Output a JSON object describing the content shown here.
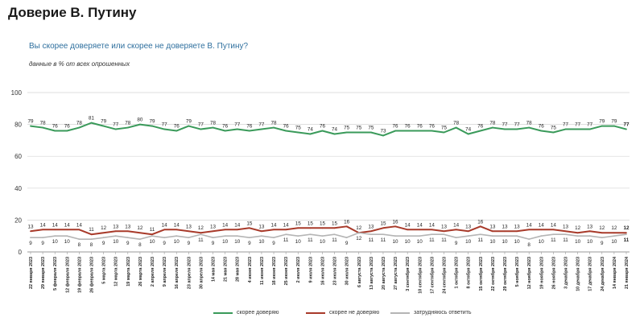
{
  "header": {
    "title": "Доверие В. Путину",
    "subtitle": "Вы скорее доверяете или скорее не доверяете В. Путину?",
    "note": "данные в % от всех опрошенных"
  },
  "colors": {
    "trust": "#3a9a5a",
    "distrust": "#a83a2a",
    "unsure": "#b5b5b5",
    "grid": "#d4d4d4"
  },
  "chart_data": {
    "type": "line",
    "ylim": [
      0,
      100
    ],
    "yticks": [
      0,
      20,
      40,
      60,
      80,
      100
    ],
    "grid": true,
    "legend_position": "bottom",
    "categories": [
      "22 января 2023",
      "29 января 2023",
      "5 февраля 2023",
      "12 февраля 2023",
      "19 февраля 2023",
      "26 февраля 2023",
      "5 марта 2023",
      "12 марта 2023",
      "19 марта 2023",
      "26 марта 2023",
      "2 апреля 2023",
      "9 апреля 2023",
      "16 апреля 2023",
      "23 апреля 2023",
      "30 апреля 2023",
      "14 мая 2023",
      "21 мая 2023",
      "28 мая 2023",
      "4 июня 2023",
      "11 июня 2023",
      "18 июня 2023",
      "25 июня 2023",
      "2 июля 2023",
      "9 июля 2023",
      "16 июля 2023",
      "23 июля 2023",
      "30 июля 2023",
      "6 августа 2023",
      "13 августа 2023",
      "20 августа 2023",
      "27 августа 2023",
      "3 сентября 2023",
      "10 сентября 2023",
      "17 сентября 2023",
      "24 сентября 2023",
      "1 октября 2023",
      "8 октября 2023",
      "15 октября 2023",
      "22 октября 2023",
      "29 октября 2023",
      "5 ноября 2023",
      "12 ноября 2023",
      "19 ноября 2023",
      "26 ноября 2023",
      "3 декабря 2023",
      "10 декабря 2023",
      "17 декабря 2023",
      "24 декабря 2023",
      "14 января 2024",
      "21 января 2024"
    ],
    "series": [
      {
        "name": "скорее доверяю",
        "key": "trust",
        "values": [
          79,
          78,
          76,
          76,
          78,
          81,
          79,
          77,
          78,
          80,
          79,
          77,
          76,
          79,
          77,
          78,
          76,
          77,
          76,
          77,
          78,
          76,
          75,
          74,
          76,
          74,
          75,
          75,
          75,
          73,
          76,
          76,
          76,
          76,
          75,
          78,
          74,
          76,
          78,
          77,
          77,
          78,
          76,
          75,
          77,
          77,
          77,
          79,
          79,
          77
        ]
      },
      {
        "name": "скорее не доверяю",
        "key": "distrust",
        "values": [
          13,
          14,
          14,
          14,
          14,
          11,
          12,
          13,
          13,
          12,
          11,
          14,
          14,
          13,
          12,
          13,
          14,
          14,
          15,
          13,
          14,
          14,
          15,
          15,
          15,
          15,
          16,
          12,
          13,
          15,
          16,
          14,
          14,
          14,
          13,
          14,
          13,
          16,
          13,
          13,
          13,
          14,
          14,
          14,
          13,
          12,
          13,
          12,
          12,
          12
        ]
      },
      {
        "name": "затрудняюсь ответить",
        "key": "unsure",
        "values": [
          9,
          9,
          10,
          10,
          8,
          8,
          9,
          10,
          9,
          8,
          10,
          9,
          10,
          9,
          11,
          9,
          10,
          10,
          9,
          10,
          9,
          11,
          10,
          11,
          10,
          11,
          9,
          12,
          11,
          11,
          10,
          10,
          10,
          11,
          11,
          9,
          10,
          11,
          10,
          10,
          10,
          8,
          10,
          11,
          11,
          10,
          10,
          9,
          10,
          11
        ]
      }
    ],
    "legend": [
      "скорее доверяю",
      "скорее не доверяю",
      "затрудняюсь ответить"
    ]
  }
}
